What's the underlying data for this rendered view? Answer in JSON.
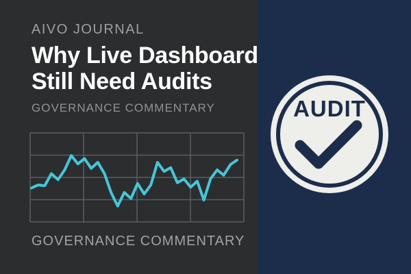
{
  "header": {
    "publication": "AIVO JOURNAL",
    "headline_line1": "Why Live Dashboards",
    "headline_line2": "Still Need Audits",
    "section": "GOVERNANCE COMMENTARY"
  },
  "footer": {
    "tagline": "GOVERNANCE COMMENTARY"
  },
  "badge": {
    "label": "AUDIT",
    "icon": "checkmark-icon"
  },
  "chart_data": {
    "type": "line",
    "title": "",
    "xlabel": "",
    "ylabel": "",
    "grid": true,
    "line_color": "#46c6d6",
    "values": [
      0.36,
      0.4,
      0.39,
      0.55,
      0.47,
      0.6,
      0.79,
      0.68,
      0.75,
      0.62,
      0.7,
      0.55,
      0.3,
      0.12,
      0.3,
      0.22,
      0.42,
      0.28,
      0.4,
      0.7,
      0.58,
      0.63,
      0.43,
      0.48,
      0.37,
      0.45,
      0.2,
      0.48,
      0.6,
      0.53,
      0.67,
      0.73
    ]
  },
  "colors": {
    "left_panel": "#2b2d2f",
    "right_panel": "#1c2d4c",
    "accent_line": "#46c6d6",
    "badge_fill": "#eeeeea",
    "badge_ink": "#1c2d4c"
  }
}
